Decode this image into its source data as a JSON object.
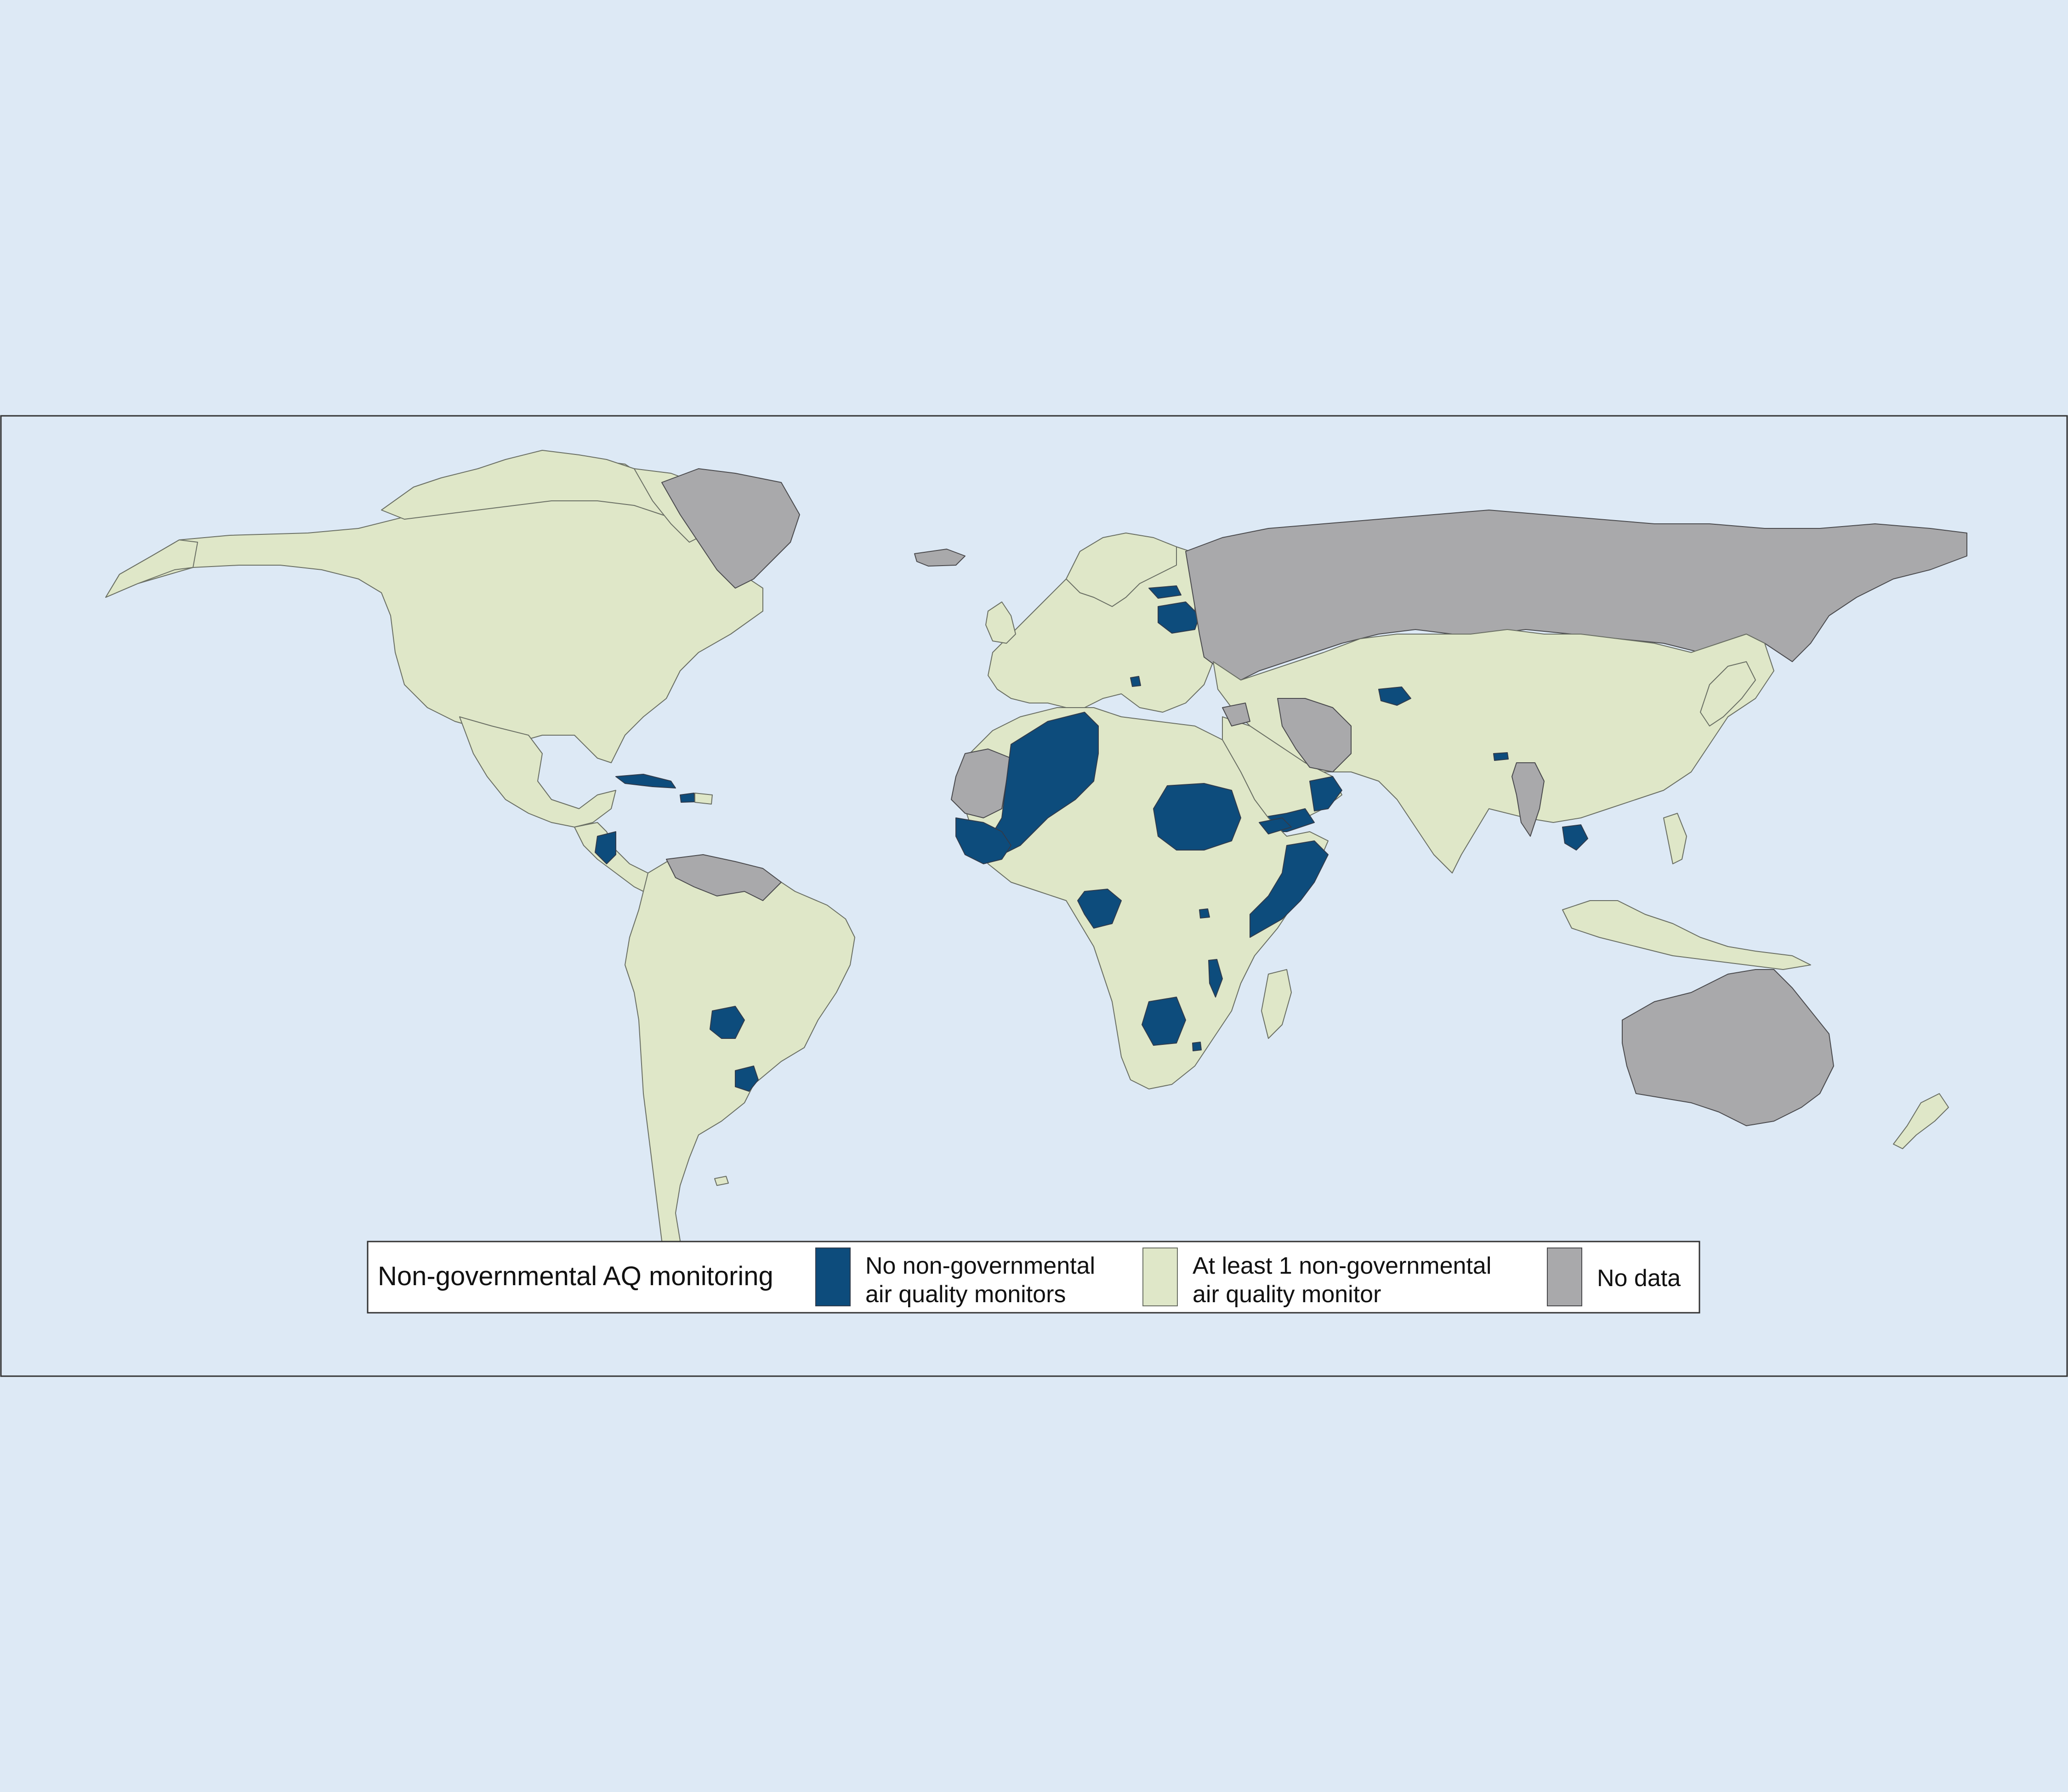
{
  "colors": {
    "background": "#dde9f5",
    "no_monitors": "#0d4c7c",
    "at_least_one": "#dfe7c8",
    "no_data": "#a9a9ab",
    "border": "#6a6f64"
  },
  "legend": {
    "title": "Non-governmental AQ monitoring",
    "items": [
      {
        "key": "no_monitors",
        "line1": "No non-governmental",
        "line2": "air quality monitors"
      },
      {
        "key": "at_least_one",
        "line1": "At least 1 non-governmental",
        "line2": "air quality monitor"
      },
      {
        "key": "no_data",
        "line1": "No data",
        "line2": ""
      }
    ]
  },
  "regions": {
    "no_monitors": [
      "Algeria",
      "Mali",
      "Senegal",
      "Guinea",
      "Sierra Leone",
      "Liberia",
      "Côte d'Ivoire",
      "Sudan",
      "Eritrea",
      "Yemen",
      "Oman",
      "Somalia",
      "Equatorial Guinea",
      "Gabon",
      "Republic of the Congo",
      "Burundi",
      "Malawi",
      "Botswana",
      "Eswatini",
      "Belarus",
      "Estonia",
      "Montenegro",
      "Tajikistan",
      "Bhutan",
      "Cambodia",
      "Cuba",
      "Haiti",
      "Nicaragua",
      "Paraguay",
      "Uruguay"
    ],
    "no_data": [
      "Greenland",
      "Russia",
      "Iran",
      "Syria",
      "Western Sahara",
      "Mauritania",
      "Venezuela",
      "Guyana",
      "Suriname",
      "French Guiana",
      "Myanmar",
      "Australia",
      "Iceland"
    ]
  }
}
